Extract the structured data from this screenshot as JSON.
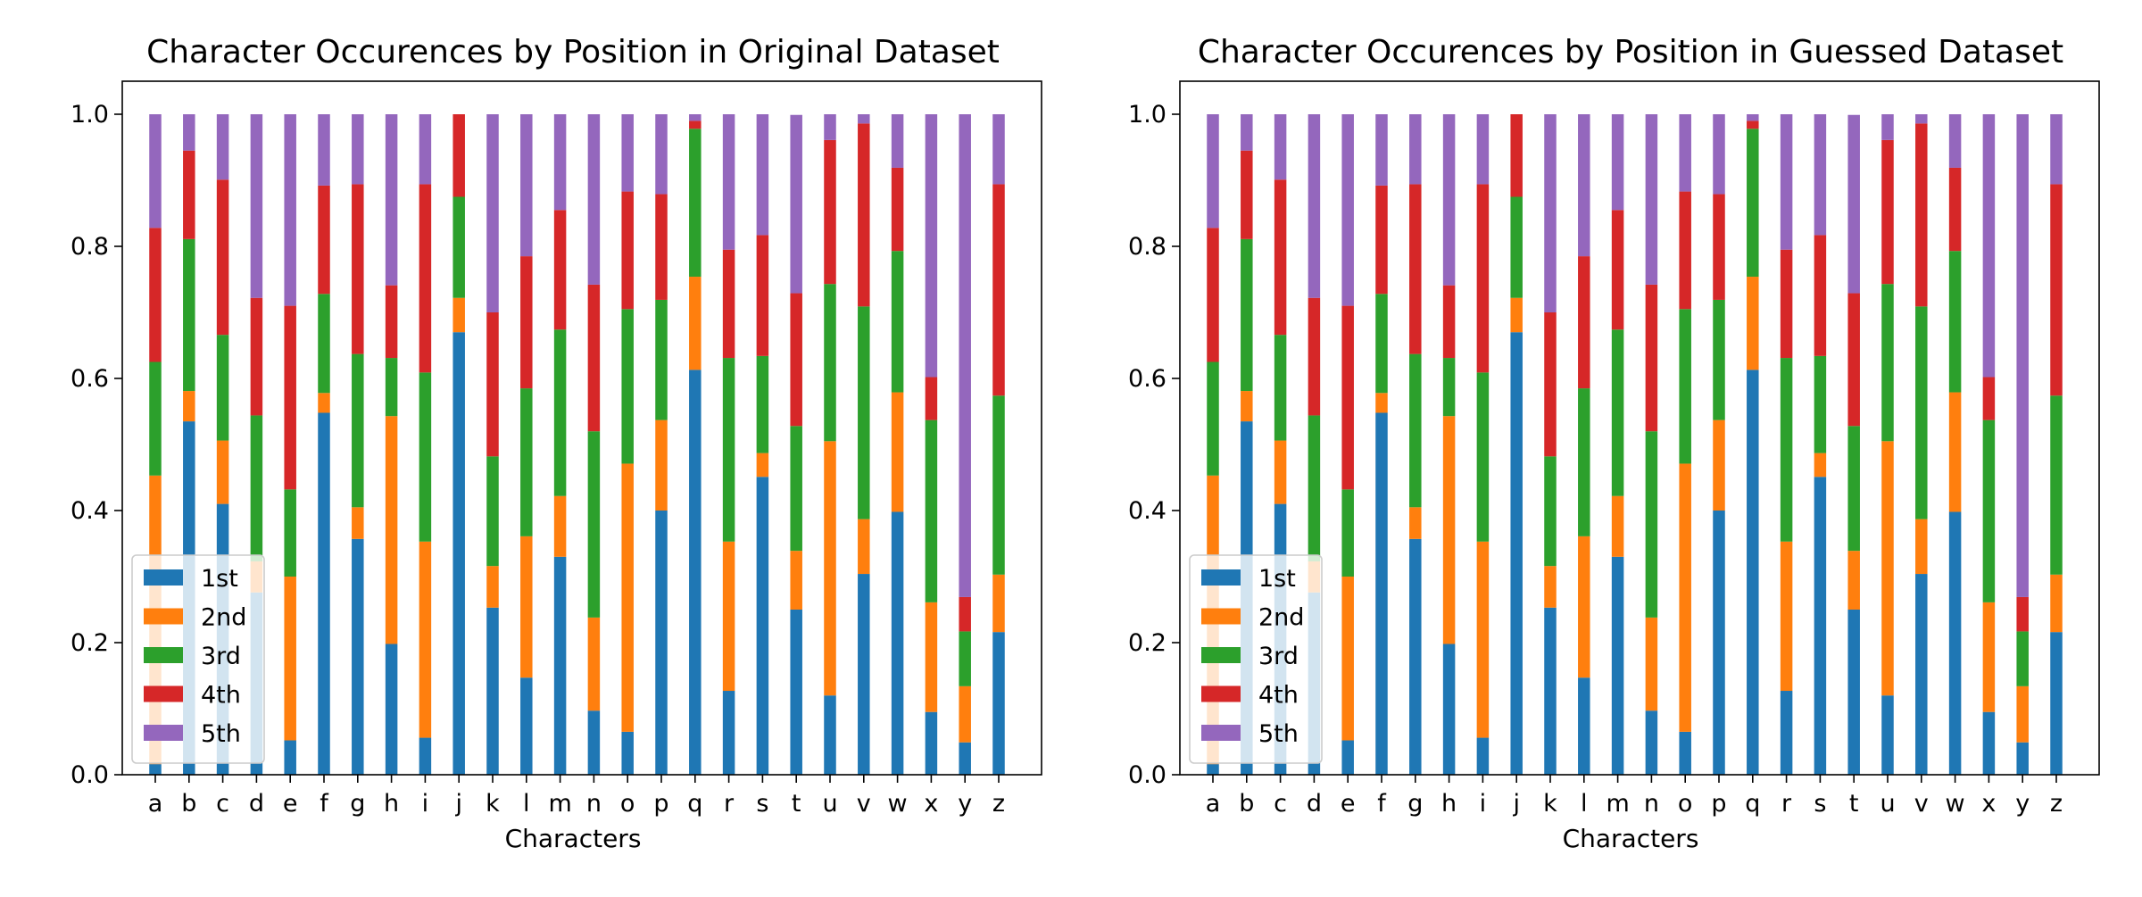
{
  "chart_data": [
    {
      "type": "bar",
      "stacked": true,
      "title": "Character Occurences by Position in Original Dataset",
      "xlabel": "Characters",
      "ylabel": "",
      "ylim": [
        0,
        1.05
      ],
      "yticks": [
        "0.0",
        "0.2",
        "0.4",
        "0.6",
        "0.8",
        "1.0"
      ],
      "grid": false,
      "legend_position": "lower-left",
      "categories": [
        "a",
        "b",
        "c",
        "d",
        "e",
        "f",
        "g",
        "h",
        "i",
        "j",
        "k",
        "l",
        "m",
        "n",
        "o",
        "p",
        "q",
        "r",
        "s",
        "t",
        "u",
        "v",
        "w",
        "x",
        "y",
        "z"
      ],
      "series": [
        {
          "name": "1st",
          "color": "#1f77b4",
          "values": [
            0.016,
            0.535,
            0.41,
            0.276,
            0.052,
            0.548,
            0.357,
            0.198,
            0.056,
            0.67,
            0.253,
            0.147,
            0.33,
            0.097,
            0.065,
            0.4,
            0.613,
            0.127,
            0.451,
            0.25,
            0.12,
            0.304,
            0.398,
            0.095,
            0.049,
            0.216
          ]
        },
        {
          "name": "2nd",
          "color": "#ff7f0e",
          "values": [
            0.437,
            0.046,
            0.096,
            0.047,
            0.248,
            0.03,
            0.048,
            0.345,
            0.297,
            0.052,
            0.063,
            0.214,
            0.092,
            0.141,
            0.406,
            0.137,
            0.141,
            0.226,
            0.036,
            0.089,
            0.385,
            0.083,
            0.181,
            0.166,
            0.085,
            0.087
          ]
        },
        {
          "name": "3rd",
          "color": "#2ca02c",
          "values": [
            0.172,
            0.23,
            0.16,
            0.221,
            0.132,
            0.15,
            0.232,
            0.088,
            0.256,
            0.153,
            0.166,
            0.224,
            0.252,
            0.282,
            0.234,
            0.182,
            0.224,
            0.278,
            0.147,
            0.189,
            0.238,
            0.322,
            0.214,
            0.276,
            0.083,
            0.271
          ]
        },
        {
          "name": "4th",
          "color": "#d62728",
          "values": [
            0.203,
            0.134,
            0.235,
            0.178,
            0.278,
            0.164,
            0.257,
            0.11,
            0.285,
            0.125,
            0.218,
            0.2,
            0.181,
            0.222,
            0.178,
            0.16,
            0.012,
            0.164,
            0.183,
            0.201,
            0.218,
            0.277,
            0.126,
            0.065,
            0.052,
            0.32
          ]
        },
        {
          "name": "5th",
          "color": "#9467bd",
          "values": [
            0.172,
            0.055,
            0.099,
            0.278,
            0.29,
            0.108,
            0.106,
            0.259,
            0.106,
            0.0,
            0.3,
            0.215,
            0.145,
            0.258,
            0.117,
            0.121,
            0.01,
            0.205,
            0.183,
            0.27,
            0.039,
            0.014,
            0.081,
            0.398,
            0.731,
            0.106
          ]
        }
      ]
    },
    {
      "type": "bar",
      "stacked": true,
      "title": "Character Occurences by Position in Guessed Dataset",
      "xlabel": "Characters",
      "ylabel": "",
      "ylim": [
        0,
        1.05
      ],
      "yticks": [
        "0.0",
        "0.2",
        "0.4",
        "0.6",
        "0.8",
        "1.0"
      ],
      "grid": false,
      "legend_position": "lower-left",
      "categories": [
        "a",
        "b",
        "c",
        "d",
        "e",
        "f",
        "g",
        "h",
        "i",
        "j",
        "k",
        "l",
        "m",
        "n",
        "o",
        "p",
        "q",
        "r",
        "s",
        "t",
        "u",
        "v",
        "w",
        "x",
        "y",
        "z"
      ],
      "series": [
        {
          "name": "1st",
          "color": "#1f77b4",
          "values": [
            0.016,
            0.535,
            0.41,
            0.276,
            0.052,
            0.548,
            0.357,
            0.198,
            0.056,
            0.67,
            0.253,
            0.147,
            0.33,
            0.097,
            0.065,
            0.4,
            0.613,
            0.127,
            0.451,
            0.25,
            0.12,
            0.304,
            0.398,
            0.095,
            0.049,
            0.216
          ]
        },
        {
          "name": "2nd",
          "color": "#ff7f0e",
          "values": [
            0.437,
            0.046,
            0.096,
            0.047,
            0.248,
            0.03,
            0.048,
            0.345,
            0.297,
            0.052,
            0.063,
            0.214,
            0.092,
            0.141,
            0.406,
            0.137,
            0.141,
            0.226,
            0.036,
            0.089,
            0.385,
            0.083,
            0.181,
            0.166,
            0.085,
            0.087
          ]
        },
        {
          "name": "3rd",
          "color": "#2ca02c",
          "values": [
            0.172,
            0.23,
            0.16,
            0.221,
            0.132,
            0.15,
            0.232,
            0.088,
            0.256,
            0.153,
            0.166,
            0.224,
            0.252,
            0.282,
            0.234,
            0.182,
            0.224,
            0.278,
            0.147,
            0.189,
            0.238,
            0.322,
            0.214,
            0.276,
            0.083,
            0.271
          ]
        },
        {
          "name": "4th",
          "color": "#d62728",
          "values": [
            0.203,
            0.134,
            0.235,
            0.178,
            0.278,
            0.164,
            0.257,
            0.11,
            0.285,
            0.125,
            0.218,
            0.2,
            0.181,
            0.222,
            0.178,
            0.16,
            0.012,
            0.164,
            0.183,
            0.201,
            0.218,
            0.277,
            0.126,
            0.065,
            0.052,
            0.32
          ]
        },
        {
          "name": "5th",
          "color": "#9467bd",
          "values": [
            0.172,
            0.055,
            0.099,
            0.278,
            0.29,
            0.108,
            0.106,
            0.259,
            0.106,
            0.0,
            0.3,
            0.215,
            0.145,
            0.258,
            0.117,
            0.121,
            0.01,
            0.205,
            0.183,
            0.27,
            0.039,
            0.014,
            0.081,
            0.398,
            0.731,
            0.106
          ]
        }
      ]
    }
  ]
}
